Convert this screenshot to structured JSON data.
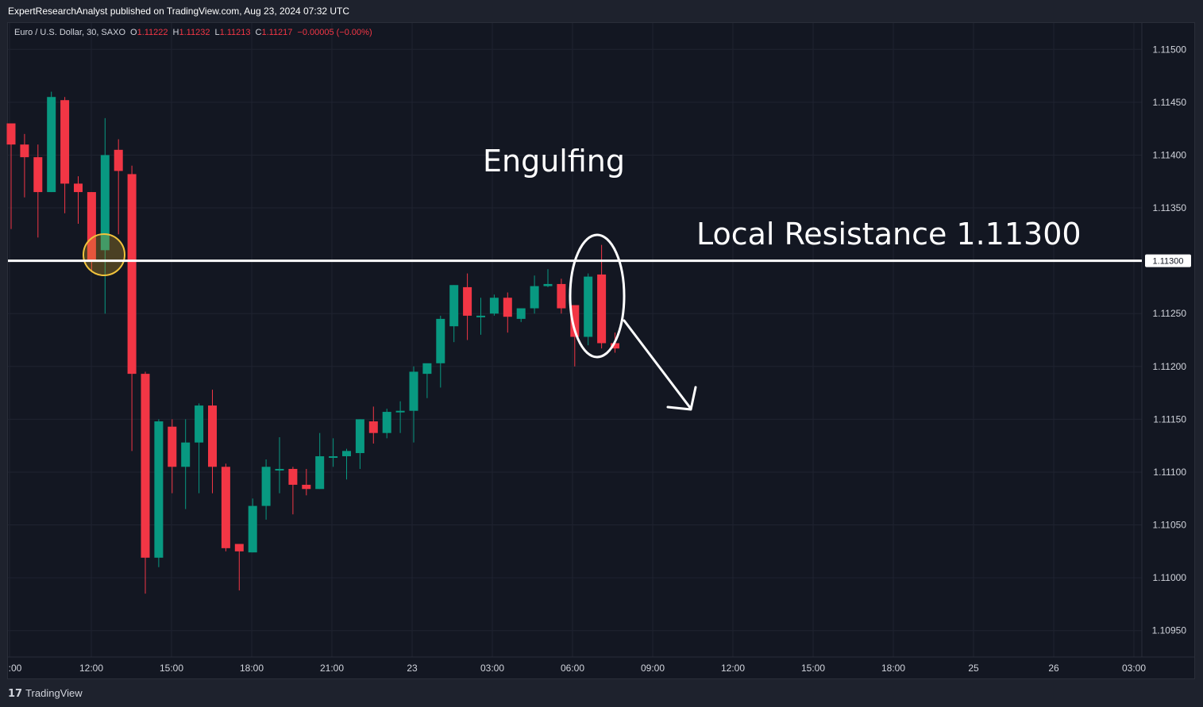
{
  "header": {
    "publish_line": "ExpertResearchAnalyst published on TradingView.com, Aug 23, 2024 07:32 UTC"
  },
  "legend": {
    "symbol": "Euro / U.S. Dollar, 30, SAXO",
    "o_label": "O",
    "o_value": "1.11222",
    "h_label": "H",
    "h_value": "1.11232",
    "l_label": "L",
    "l_value": "1.11213",
    "c_label": "C",
    "c_value": "1.11217",
    "change": "−0.00005 (−0.00%)"
  },
  "footer": {
    "brand": "TradingView",
    "logo": "17"
  },
  "colors": {
    "up": "#089981",
    "down": "#f23645",
    "background": "#131722",
    "grid": "#1f2330"
  },
  "chart_data": {
    "type": "candlestick",
    "symbol": "EURUSD",
    "interval": "30",
    "y_range": [
      1.10925,
      1.11525
    ],
    "price_ticks": [
      "1.11500",
      "1.11450",
      "1.11400",
      "1.11350",
      "1.11300",
      "1.11250",
      "1.11200",
      "1.11150",
      "1.11100",
      "1.11050",
      "1.11000",
      "1.10950"
    ],
    "time_ticks": [
      ":00",
      "12:00",
      "15:00",
      "18:00",
      "21:00",
      "23",
      "03:00",
      "06:00",
      "09:00",
      "12:00",
      "15:00",
      "18:00",
      "25",
      "26",
      "03:00"
    ],
    "resistance": {
      "price": 1.113,
      "label": "1.11300",
      "annotation": "Local Resistance 1.11300"
    },
    "pattern_label": "Engulfing",
    "candles": [
      {
        "t": "Aug 22 09:30",
        "o": 1.1143,
        "h": 1.1143,
        "l": 1.1133,
        "c": 1.1141
      },
      {
        "t": "Aug 22 10:00",
        "o": 1.1141,
        "h": 1.1142,
        "l": 1.1136,
        "c": 1.11398
      },
      {
        "t": "Aug 22 10:30",
        "o": 1.11398,
        "h": 1.1141,
        "l": 1.11322,
        "c": 1.11365
      },
      {
        "t": "Aug 22 11:00",
        "o": 1.11365,
        "h": 1.1146,
        "l": 1.11365,
        "c": 1.11455
      },
      {
        "t": "Aug 22 11:30",
        "o": 1.11452,
        "h": 1.11455,
        "l": 1.11345,
        "c": 1.11373
      },
      {
        "t": "Aug 22 12:00",
        "o": 1.11373,
        "h": 1.1138,
        "l": 1.11335,
        "c": 1.11365
      },
      {
        "t": "Aug 22 12:30",
        "o": 1.11365,
        "h": 1.11365,
        "l": 1.1129,
        "c": 1.113
      },
      {
        "t": "Aug 22 13:00",
        "o": 1.1131,
        "h": 1.11435,
        "l": 1.1125,
        "c": 1.114
      },
      {
        "t": "Aug 22 13:30",
        "o": 1.11405,
        "h": 1.11415,
        "l": 1.11325,
        "c": 1.11385
      },
      {
        "t": "Aug 22 14:00",
        "o": 1.11382,
        "h": 1.1139,
        "l": 1.1112,
        "c": 1.11193
      },
      {
        "t": "Aug 22 14:30",
        "o": 1.11193,
        "h": 1.11195,
        "l": 1.10985,
        "c": 1.11019
      },
      {
        "t": "Aug 22 15:00",
        "o": 1.11019,
        "h": 1.1115,
        "l": 1.1101,
        "c": 1.11148
      },
      {
        "t": "Aug 22 15:30",
        "o": 1.11143,
        "h": 1.1115,
        "l": 1.1108,
        "c": 1.11105
      },
      {
        "t": "Aug 22 16:00",
        "o": 1.11105,
        "h": 1.1115,
        "l": 1.11065,
        "c": 1.11128
      },
      {
        "t": "Aug 22 16:30",
        "o": 1.11128,
        "h": 1.11165,
        "l": 1.1108,
        "c": 1.11163
      },
      {
        "t": "Aug 22 17:00",
        "o": 1.11163,
        "h": 1.11178,
        "l": 1.1108,
        "c": 1.11105
      },
      {
        "t": "Aug 22 17:30",
        "o": 1.11105,
        "h": 1.11108,
        "l": 1.11025,
        "c": 1.11028
      },
      {
        "t": "Aug 22 18:00",
        "o": 1.11032,
        "h": 1.11032,
        "l": 1.10988,
        "c": 1.11025
      },
      {
        "t": "Aug 22 18:30",
        "o": 1.11024,
        "h": 1.11075,
        "l": 1.11024,
        "c": 1.11068
      },
      {
        "t": "Aug 22 19:00",
        "o": 1.11068,
        "h": 1.11112,
        "l": 1.11055,
        "c": 1.11105
      },
      {
        "t": "Aug 22 19:30",
        "o": 1.11103,
        "h": 1.11133,
        "l": 1.1108,
        "c": 1.11103
      },
      {
        "t": "Aug 22 20:00",
        "o": 1.11103,
        "h": 1.11105,
        "l": 1.1106,
        "c": 1.11088
      },
      {
        "t": "Aug 22 20:30",
        "o": 1.11088,
        "h": 1.11103,
        "l": 1.11078,
        "c": 1.11084
      },
      {
        "t": "Aug 22 21:00",
        "o": 1.11084,
        "h": 1.11137,
        "l": 1.11084,
        "c": 1.11115
      },
      {
        "t": "Aug 22 21:30",
        "o": 1.11115,
        "h": 1.11132,
        "l": 1.11105,
        "c": 1.11115
      },
      {
        "t": "Aug 22 22:00",
        "o": 1.11115,
        "h": 1.11122,
        "l": 1.11093,
        "c": 1.1112
      },
      {
        "t": "Aug 22 22:30",
        "o": 1.11118,
        "h": 1.1115,
        "l": 1.11103,
        "c": 1.1115
      },
      {
        "t": "Aug 22 23:00",
        "o": 1.11148,
        "h": 1.11162,
        "l": 1.11127,
        "c": 1.11137
      },
      {
        "t": "Aug 22 23:30",
        "o": 1.11137,
        "h": 1.1116,
        "l": 1.11132,
        "c": 1.11157
      },
      {
        "t": "Aug 23 00:00",
        "o": 1.11157,
        "h": 1.11167,
        "l": 1.11137,
        "c": 1.11158
      },
      {
        "t": "Aug 23 00:30",
        "o": 1.11158,
        "h": 1.112,
        "l": 1.11128,
        "c": 1.11195
      },
      {
        "t": "Aug 23 01:00",
        "o": 1.11193,
        "h": 1.112,
        "l": 1.1117,
        "c": 1.11203
      },
      {
        "t": "Aug 23 01:30",
        "o": 1.11203,
        "h": 1.11248,
        "l": 1.1118,
        "c": 1.11245
      },
      {
        "t": "Aug 23 02:00",
        "o": 1.11238,
        "h": 1.11277,
        "l": 1.11223,
        "c": 1.11277
      },
      {
        "t": "Aug 23 02:30",
        "o": 1.11275,
        "h": 1.11288,
        "l": 1.11225,
        "c": 1.11248
      },
      {
        "t": "Aug 23 03:00",
        "o": 1.11248,
        "h": 1.11265,
        "l": 1.1123,
        "c": 1.11248
      },
      {
        "t": "Aug 23 03:30",
        "o": 1.1125,
        "h": 1.11268,
        "l": 1.11248,
        "c": 1.11265
      },
      {
        "t": "Aug 23 04:00",
        "o": 1.11265,
        "h": 1.1127,
        "l": 1.11232,
        "c": 1.11247
      },
      {
        "t": "Aug 23 04:30",
        "o": 1.11245,
        "h": 1.11255,
        "l": 1.11242,
        "c": 1.11255
      },
      {
        "t": "Aug 23 05:00",
        "o": 1.11255,
        "h": 1.11286,
        "l": 1.1125,
        "c": 1.11276
      },
      {
        "t": "Aug 23 05:30",
        "o": 1.11276,
        "h": 1.11292,
        "l": 1.11275,
        "c": 1.11278
      },
      {
        "t": "Aug 23 06:00",
        "o": 1.11278,
        "h": 1.11283,
        "l": 1.1125,
        "c": 1.11255
      },
      {
        "t": "Aug 23 06:30",
        "o": 1.11258,
        "h": 1.11258,
        "l": 1.112,
        "c": 1.11228
      },
      {
        "t": "Aug 23 07:00",
        "o": 1.11228,
        "h": 1.11288,
        "l": 1.1122,
        "c": 1.11285
      },
      {
        "t": "Aug 23 07:30",
        "o": 1.11287,
        "h": 1.11315,
        "l": 1.11217,
        "c": 1.11222
      },
      {
        "t": "Aug 23 08:00",
        "o": 1.11222,
        "h": 1.11232,
        "l": 1.11213,
        "c": 1.11217
      }
    ]
  }
}
